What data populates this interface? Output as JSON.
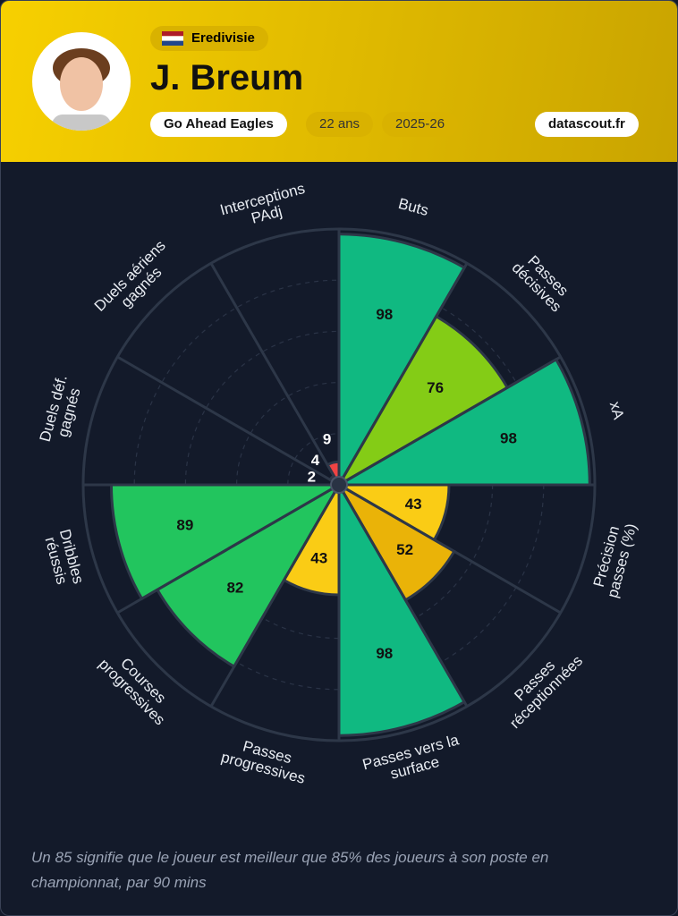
{
  "header": {
    "league": "Eredivisie",
    "player": "J. Breum",
    "team": "Go Ahead Eagles",
    "age": "22 ans",
    "season": "2025-26",
    "source": "datascout.fr"
  },
  "chart_data": {
    "type": "pizza",
    "categories": [
      [
        "Buts"
      ],
      [
        "Passes",
        "décisives"
      ],
      [
        "xA"
      ],
      [
        "Précision",
        "passes (%)"
      ],
      [
        "Passes",
        "réceptionnées"
      ],
      [
        "Passes vers la",
        "surface"
      ],
      [
        "Passes",
        "progressives"
      ],
      [
        "Courses",
        "progressives"
      ],
      [
        "Dribbles",
        "réussis"
      ],
      [
        "Duels déf.",
        "gagnés"
      ],
      [
        "Duels aériens",
        "gagnés"
      ],
      [
        "Interceptions",
        "PAdj"
      ]
    ],
    "values": [
      98,
      76,
      98,
      43,
      52,
      98,
      43,
      82,
      89,
      2,
      4,
      9
    ],
    "colors": [
      "#10b981",
      "#84cc16",
      "#10b981",
      "#facc15",
      "#eab308",
      "#10b981",
      "#facc15",
      "#22c55e",
      "#22c55e",
      "#ef4444",
      "#ef4444",
      "#ef4444"
    ],
    "ylim": [
      0,
      100
    ],
    "yticks": [
      20,
      40,
      60,
      80,
      100
    ]
  },
  "footer": "Un 85 signifie que le joueur est meilleur que 85% des joueurs à son poste en championnat, par 90 mins"
}
